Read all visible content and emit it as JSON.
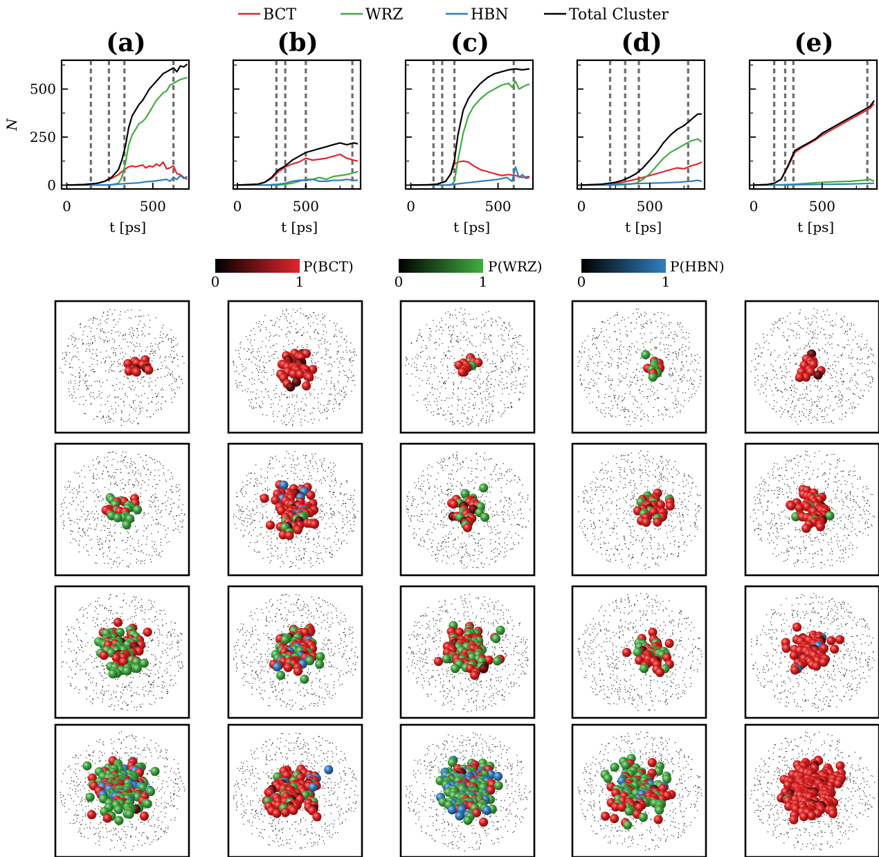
{
  "legend": [
    {
      "label": "BCT",
      "color": "#e3242b"
    },
    {
      "label": "WRZ",
      "color": "#3fae3f"
    },
    {
      "label": "HBN",
      "color": "#2f7fbf"
    },
    {
      "label": "Total Cluster",
      "color": "#000000"
    }
  ],
  "colorbars": [
    {
      "label": "P(BCT)",
      "min_label": "0",
      "max_label": "1",
      "color": "#e3242b"
    },
    {
      "label": "P(WRZ)",
      "min_label": "0",
      "max_label": "1",
      "color": "#3fae3f"
    },
    {
      "label": "P(HBN)",
      "min_label": "0",
      "max_label": "1",
      "color": "#2f7fbf"
    }
  ],
  "chart_data": [
    {
      "type": "line",
      "title": "(a)",
      "xlabel": "t [ps]",
      "ylabel": "N",
      "xlim": [
        -30,
        710
      ],
      "ylim": [
        -20,
        650
      ],
      "xticks": [
        0,
        500
      ],
      "yticks": [
        0,
        250,
        500
      ],
      "vlines": [
        140,
        245,
        335,
        620
      ],
      "series": [
        {
          "name": "Total Cluster",
          "x": [
            0,
            100,
            180,
            220,
            260,
            300,
            320,
            340,
            360,
            380,
            400,
            420,
            440,
            460,
            480,
            500,
            520,
            540,
            560,
            580,
            600,
            620,
            640,
            660,
            680,
            700
          ],
          "y": [
            0,
            3,
            10,
            20,
            40,
            80,
            130,
            200,
            300,
            360,
            390,
            420,
            440,
            470,
            500,
            520,
            540,
            560,
            580,
            590,
            600,
            610,
            590,
            620,
            615,
            630
          ]
        },
        {
          "name": "BCT",
          "x": [
            0,
            100,
            180,
            220,
            260,
            300,
            320,
            340,
            360,
            380,
            400,
            420,
            440,
            460,
            480,
            500,
            520,
            540,
            560,
            580,
            600,
            620,
            640,
            660,
            680,
            700
          ],
          "y": [
            0,
            3,
            10,
            20,
            35,
            55,
            70,
            85,
            95,
            100,
            95,
            100,
            105,
            90,
            100,
            95,
            110,
            100,
            120,
            85,
            90,
            100,
            60,
            55,
            40,
            30
          ]
        },
        {
          "name": "WRZ",
          "x": [
            0,
            200,
            260,
            300,
            320,
            340,
            360,
            380,
            400,
            420,
            440,
            460,
            480,
            500,
            520,
            540,
            560,
            580,
            600,
            620,
            640,
            660,
            680,
            700
          ],
          "y": [
            0,
            0,
            2,
            10,
            40,
            110,
            210,
            260,
            290,
            320,
            330,
            350,
            380,
            410,
            440,
            460,
            480,
            490,
            520,
            530,
            540,
            550,
            555,
            560
          ]
        },
        {
          "name": "HBN",
          "x": [
            0,
            200,
            260,
            300,
            340,
            380,
            420,
            460,
            500,
            540,
            580,
            600,
            620,
            640,
            660,
            680,
            700
          ],
          "y": [
            0,
            0,
            2,
            5,
            8,
            10,
            12,
            18,
            20,
            25,
            30,
            20,
            40,
            30,
            50,
            35,
            45
          ]
        }
      ]
    },
    {
      "type": "line",
      "title": "(b)",
      "xlabel": "t [ps]",
      "ylabel": "",
      "xlim": [
        -30,
        900
      ],
      "ylim": [
        -20,
        650
      ],
      "xticks": [
        0,
        500
      ],
      "yticks": [
        0,
        250,
        500
      ],
      "vlines": [
        285,
        350,
        500,
        840
      ],
      "series": [
        {
          "name": "Total Cluster",
          "x": [
            0,
            150,
            200,
            250,
            300,
            350,
            400,
            450,
            500,
            550,
            600,
            650,
            700,
            750,
            800,
            850,
            880
          ],
          "y": [
            0,
            5,
            15,
            40,
            80,
            100,
            130,
            150,
            170,
            180,
            190,
            200,
            210,
            220,
            210,
            220,
            215
          ]
        },
        {
          "name": "BCT",
          "x": [
            0,
            150,
            200,
            250,
            300,
            350,
            400,
            450,
            500,
            550,
            600,
            650,
            700,
            750,
            800,
            850,
            880
          ],
          "y": [
            0,
            5,
            15,
            35,
            70,
            95,
            110,
            120,
            140,
            130,
            135,
            140,
            150,
            160,
            140,
            130,
            125
          ]
        },
        {
          "name": "WRZ",
          "x": [
            0,
            300,
            350,
            400,
            450,
            500,
            550,
            600,
            650,
            700,
            750,
            800,
            850,
            880
          ],
          "y": [
            0,
            0,
            5,
            10,
            20,
            30,
            30,
            40,
            30,
            45,
            50,
            55,
            65,
            70
          ]
        },
        {
          "name": "HBN",
          "x": [
            0,
            200,
            300,
            350,
            400,
            450,
            500,
            550,
            600,
            650,
            700,
            750,
            800,
            850,
            880
          ],
          "y": [
            0,
            0,
            5,
            10,
            20,
            25,
            25,
            30,
            20,
            20,
            25,
            25,
            30,
            25,
            25
          ]
        }
      ]
    },
    {
      "type": "line",
      "title": "(c)",
      "xlabel": "t [ps]",
      "ylabel": "",
      "xlim": [
        -30,
        700
      ],
      "ylim": [
        -20,
        650
      ],
      "xticks": [
        0,
        500
      ],
      "yticks": [
        0,
        250,
        500
      ],
      "vlines": [
        130,
        180,
        250,
        590
      ],
      "series": [
        {
          "name": "Total Cluster",
          "x": [
            0,
            100,
            150,
            200,
            230,
            250,
            270,
            300,
            330,
            360,
            400,
            440,
            480,
            520,
            560,
            600,
            640,
            680
          ],
          "y": [
            0,
            2,
            5,
            20,
            60,
            130,
            260,
            390,
            450,
            490,
            530,
            560,
            580,
            590,
            600,
            605,
            600,
            605
          ]
        },
        {
          "name": "BCT",
          "x": [
            0,
            100,
            150,
            200,
            230,
            250,
            270,
            300,
            330,
            360,
            400,
            440,
            480,
            520,
            560,
            600,
            640,
            680
          ],
          "y": [
            0,
            2,
            5,
            20,
            60,
            110,
            120,
            125,
            120,
            100,
            80,
            70,
            60,
            50,
            55,
            50,
            40,
            45
          ]
        },
        {
          "name": "WRZ",
          "x": [
            0,
            230,
            250,
            270,
            300,
            330,
            360,
            400,
            440,
            480,
            520,
            560,
            580,
            600,
            620,
            640,
            660,
            680
          ],
          "y": [
            0,
            0,
            20,
            130,
            270,
            360,
            410,
            450,
            480,
            500,
            520,
            530,
            510,
            540,
            500,
            510,
            520,
            525
          ]
        },
        {
          "name": "HBN",
          "x": [
            0,
            200,
            250,
            300,
            350,
            400,
            450,
            500,
            550,
            580,
            600,
            620,
            640,
            660,
            680
          ],
          "y": [
            0,
            0,
            5,
            10,
            15,
            20,
            25,
            30,
            40,
            20,
            95,
            40,
            55,
            35,
            40
          ]
        }
      ]
    },
    {
      "type": "line",
      "title": "(d)",
      "xlabel": "t [ps]",
      "ylabel": "",
      "xlim": [
        -30,
        900
      ],
      "ylim": [
        -20,
        650
      ],
      "xticks": [
        0,
        500
      ],
      "yticks": [
        0,
        250,
        500
      ],
      "vlines": [
        210,
        320,
        420,
        780
      ],
      "series": [
        {
          "name": "Total Cluster",
          "x": [
            0,
            150,
            200,
            250,
            300,
            350,
            400,
            450,
            500,
            550,
            600,
            650,
            700,
            750,
            800,
            850,
            880
          ],
          "y": [
            0,
            5,
            10,
            15,
            25,
            40,
            60,
            90,
            130,
            170,
            220,
            260,
            290,
            310,
            340,
            370,
            370
          ]
        },
        {
          "name": "BCT",
          "x": [
            0,
            200,
            300,
            400,
            450,
            500,
            550,
            600,
            650,
            700,
            750,
            800,
            850,
            880
          ],
          "y": [
            0,
            5,
            15,
            30,
            40,
            50,
            60,
            70,
            80,
            90,
            85,
            100,
            110,
            120
          ]
        },
        {
          "name": "WRZ",
          "x": [
            0,
            250,
            350,
            400,
            450,
            500,
            550,
            600,
            650,
            700,
            750,
            800,
            850,
            880
          ],
          "y": [
            0,
            0,
            5,
            10,
            30,
            60,
            100,
            140,
            170,
            190,
            210,
            230,
            240,
            225
          ]
        },
        {
          "name": "HBN",
          "x": [
            0,
            200,
            300,
            400,
            500,
            600,
            700,
            800,
            850,
            880
          ],
          "y": [
            0,
            2,
            5,
            8,
            10,
            12,
            15,
            20,
            25,
            20
          ]
        }
      ]
    },
    {
      "type": "line",
      "title": "(e)",
      "xlabel": "t [ps]",
      "ylabel": "",
      "xlim": [
        -30,
        900
      ],
      "ylim": [
        -20,
        650
      ],
      "xticks": [
        0,
        500
      ],
      "yticks": [
        0,
        250,
        500
      ],
      "vlines": [
        150,
        230,
        290,
        830
      ],
      "series": [
        {
          "name": "Total Cluster",
          "x": [
            0,
            100,
            150,
            200,
            250,
            300,
            350,
            400,
            450,
            500,
            550,
            600,
            650,
            700,
            750,
            800,
            850,
            880
          ],
          "y": [
            0,
            3,
            10,
            30,
            100,
            180,
            200,
            220,
            240,
            270,
            290,
            310,
            330,
            350,
            370,
            390,
            410,
            440
          ]
        },
        {
          "name": "BCT",
          "x": [
            0,
            100,
            150,
            200,
            250,
            300,
            350,
            400,
            450,
            500,
            550,
            600,
            650,
            700,
            750,
            800,
            850,
            880
          ],
          "y": [
            0,
            3,
            10,
            30,
            95,
            170,
            195,
            215,
            235,
            260,
            280,
            300,
            320,
            340,
            360,
            380,
            400,
            425
          ]
        },
        {
          "name": "WRZ",
          "x": [
            0,
            200,
            300,
            400,
            500,
            600,
            700,
            800,
            850,
            880
          ],
          "y": [
            0,
            2,
            5,
            10,
            15,
            18,
            20,
            25,
            30,
            20
          ]
        },
        {
          "name": "HBN",
          "x": [
            0,
            200,
            300,
            400,
            500,
            600,
            700,
            800,
            880
          ],
          "y": [
            0,
            1,
            2,
            3,
            4,
            5,
            6,
            8,
            10
          ]
        }
      ]
    }
  ],
  "snapshots": {
    "rows": 4,
    "columns": 5,
    "particle_colors": {
      "bct": "#d41e1e",
      "wrz": "#3e9e3e",
      "hbn": "#2f77b8",
      "dark": "#5a0d0d"
    },
    "composition": [
      [
        {
          "n": 12,
          "mix": [
            1.0,
            0.0,
            0.0
          ]
        },
        {
          "n": 40,
          "mix": [
            1.0,
            0.0,
            0.0
          ]
        },
        {
          "n": 14,
          "mix": [
            0.7,
            0.3,
            0.0
          ]
        },
        {
          "n": 12,
          "mix": [
            0.6,
            0.4,
            0.0
          ]
        },
        {
          "n": 14,
          "mix": [
            1.0,
            0.0,
            0.0
          ]
        }
      ],
      [
        {
          "n": 25,
          "mix": [
            0.4,
            0.6,
            0.0
          ]
        },
        {
          "n": 80,
          "mix": [
            0.85,
            0.05,
            0.1
          ]
        },
        {
          "n": 40,
          "mix": [
            0.65,
            0.35,
            0.0
          ]
        },
        {
          "n": 40,
          "mix": [
            0.6,
            0.4,
            0.0
          ]
        },
        {
          "n": 60,
          "mix": [
            0.95,
            0.05,
            0.0
          ]
        }
      ],
      [
        {
          "n": 90,
          "mix": [
            0.3,
            0.7,
            0.0
          ]
        },
        {
          "n": 90,
          "mix": [
            0.55,
            0.35,
            0.1
          ]
        },
        {
          "n": 110,
          "mix": [
            0.5,
            0.5,
            0.0
          ]
        },
        {
          "n": 50,
          "mix": [
            0.6,
            0.4,
            0.0
          ]
        },
        {
          "n": 70,
          "mix": [
            0.9,
            0.02,
            0.08
          ]
        }
      ],
      [
        {
          "n": 180,
          "mix": [
            0.25,
            0.65,
            0.1
          ]
        },
        {
          "n": 110,
          "mix": [
            0.85,
            0.1,
            0.05
          ]
        },
        {
          "n": 200,
          "mix": [
            0.2,
            0.6,
            0.2
          ]
        },
        {
          "n": 140,
          "mix": [
            0.4,
            0.55,
            0.05
          ]
        },
        {
          "n": 180,
          "mix": [
            0.97,
            0.02,
            0.01
          ]
        }
      ]
    ]
  }
}
